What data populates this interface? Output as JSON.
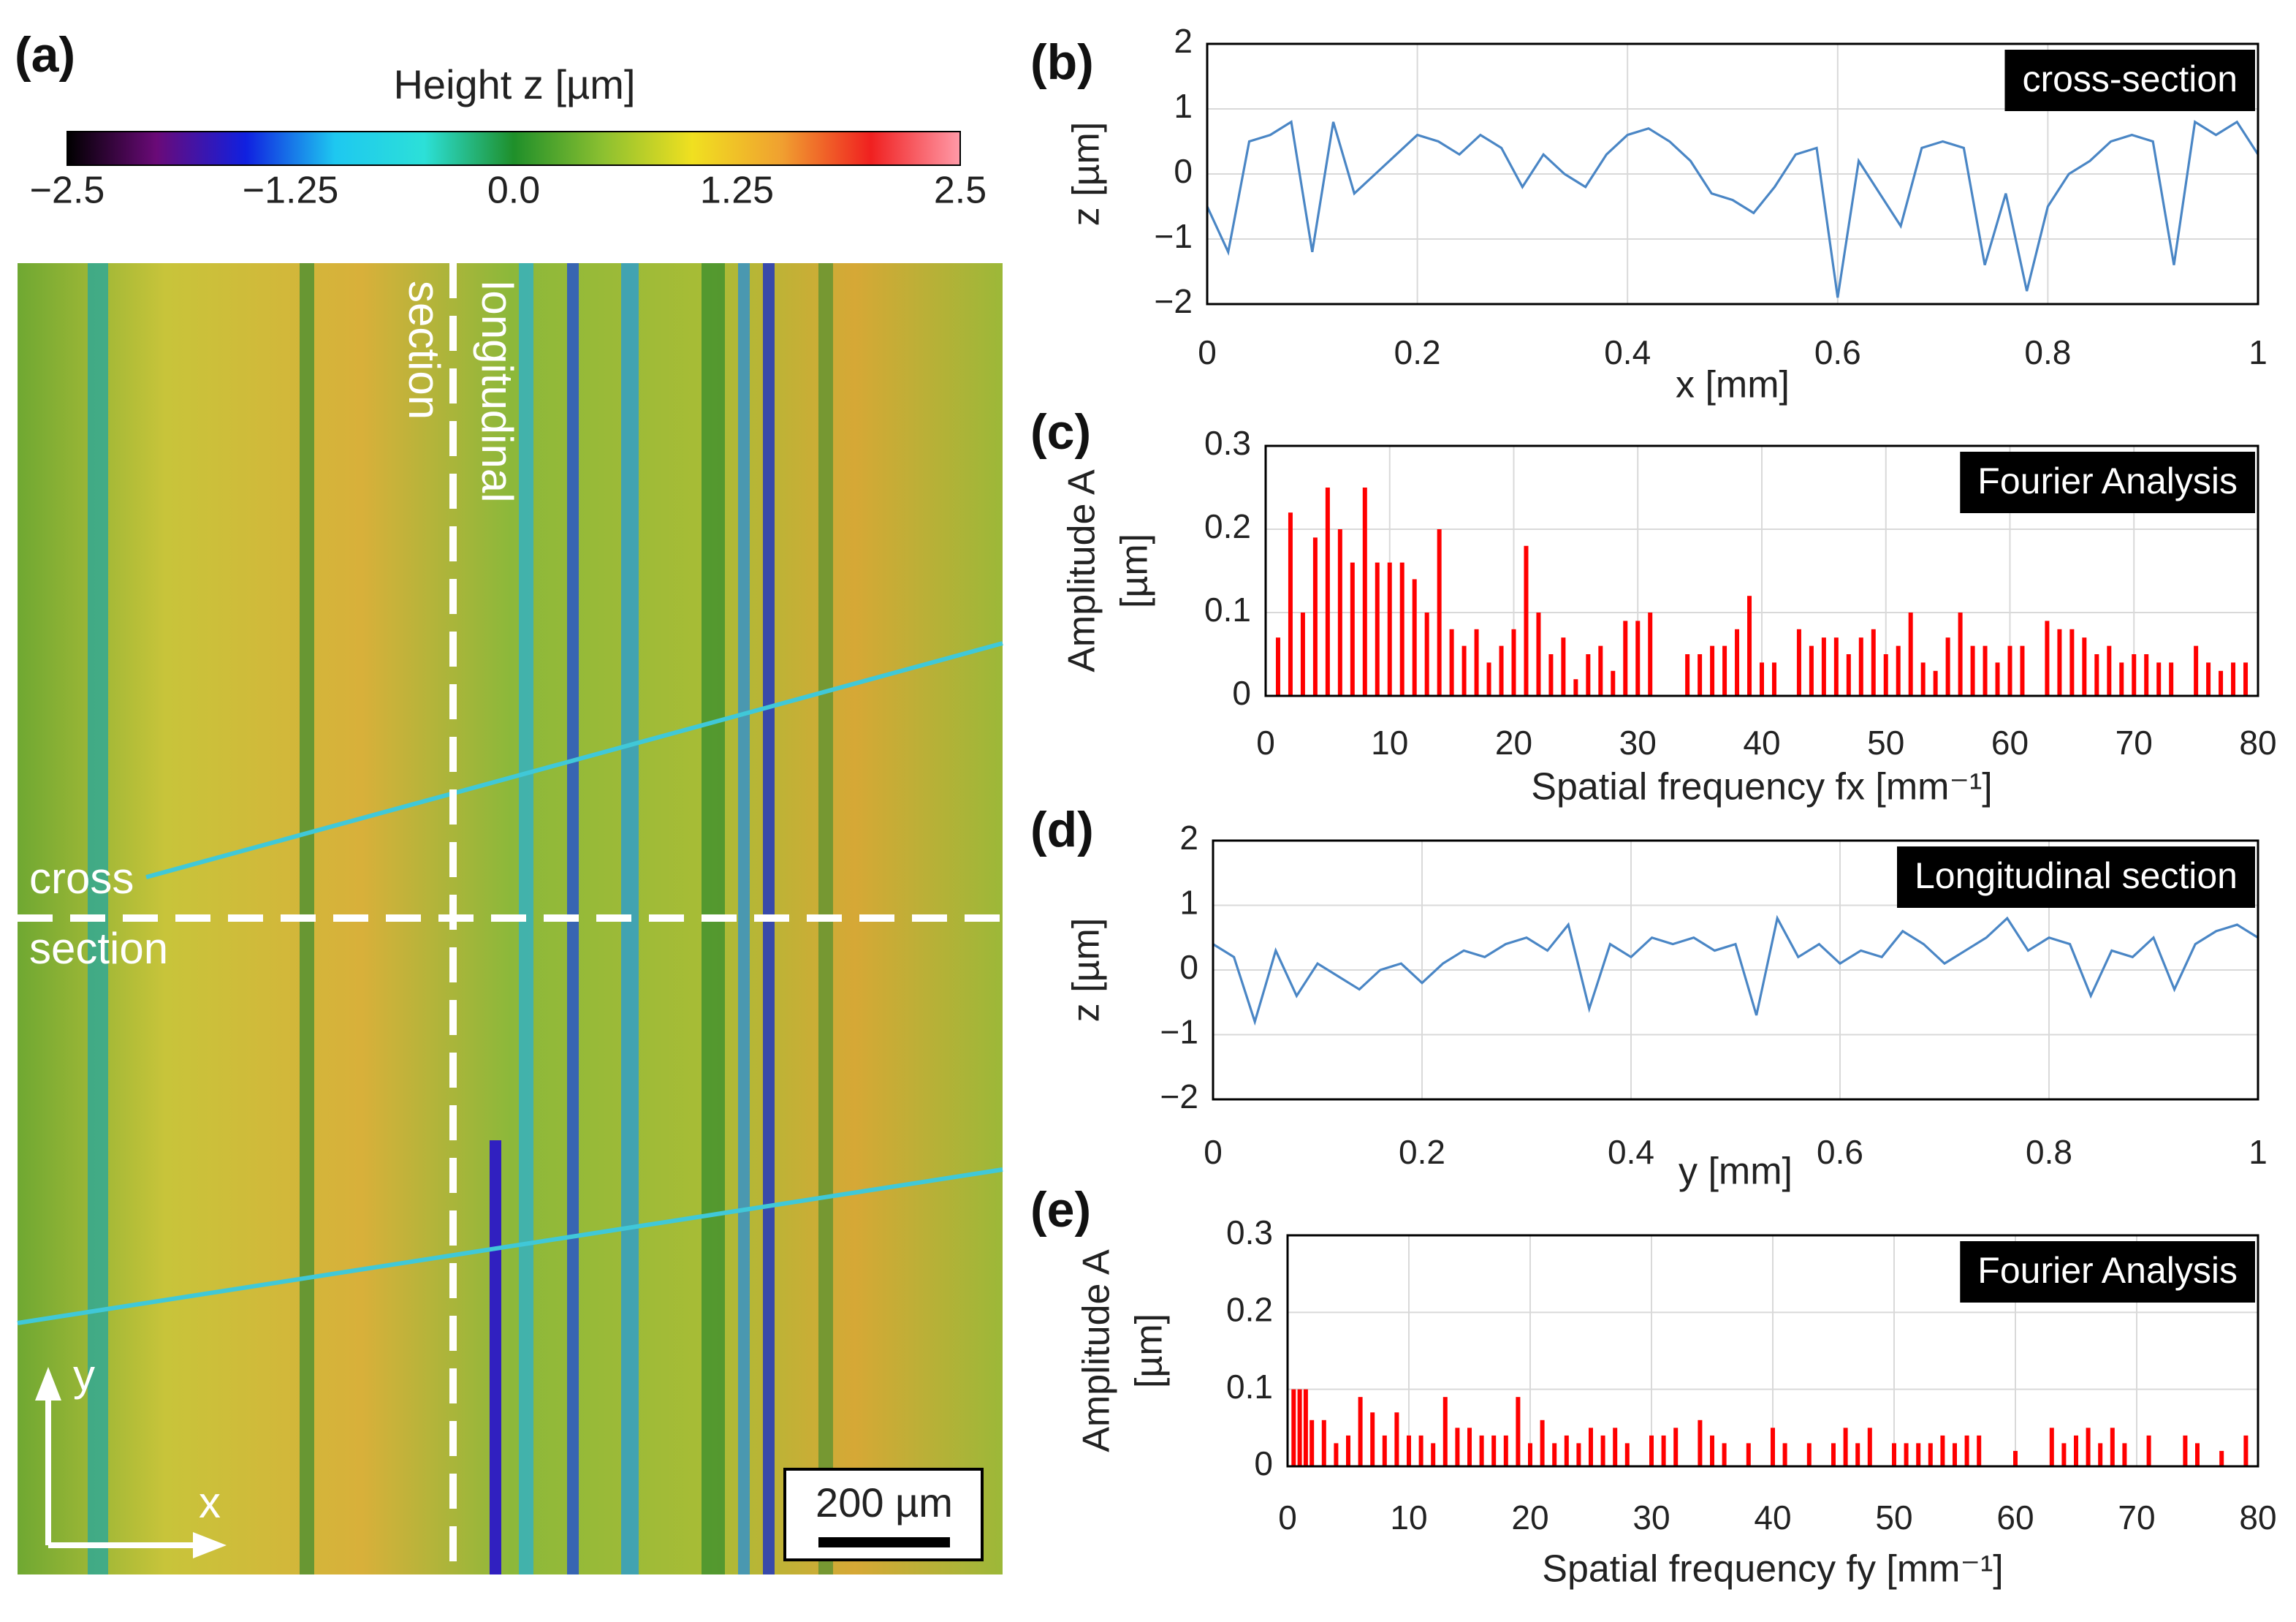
{
  "chart_data": [
    {
      "type": "image",
      "panel": "(a)",
      "title": "Height z [µm]",
      "colormap": [
        "#000000",
        "#6a0a78",
        "#1020e0",
        "#1ec8f0",
        "#2ce0d8",
        "#1f8f2a",
        "#8cc030",
        "#f0e020",
        "#f0a030",
        "#f02020",
        "#ff9aa8"
      ],
      "clim": [
        -2.5,
        2.5
      ],
      "cticks": [
        {
          "value": -2.5,
          "label": "−2.5"
        },
        {
          "value": -1.25,
          "label": "−1.25"
        },
        {
          "value": 0,
          "label": "0.0"
        },
        1.25,
        2.5
      ],
      "label_longitudinal": [
        "longitudinal",
        "section"
      ],
      "label_cross": [
        "cross",
        "section"
      ],
      "scale_bar": "200 µm",
      "axis_x": "x",
      "axis_y": "y"
    },
    {
      "type": "line",
      "panel": "(b)",
      "annotation": "cross-section",
      "xlabel": "x [mm]",
      "ylabel": "z [µm]",
      "color": "#4a86c5",
      "xlim": [
        0,
        1
      ],
      "ylim": [
        -2,
        2
      ],
      "xticks": [
        0,
        0.2,
        0.4,
        0.6,
        0.8,
        1
      ],
      "yticks": [
        {
          "value": -2,
          "label": "−2"
        },
        {
          "value": -1,
          "label": "−1"
        },
        0,
        1,
        2
      ],
      "grid": true,
      "x": [
        0,
        0.02,
        0.04,
        0.06,
        0.08,
        0.1,
        0.12,
        0.14,
        0.16,
        0.18,
        0.2,
        0.22,
        0.24,
        0.26,
        0.28,
        0.3,
        0.32,
        0.34,
        0.36,
        0.38,
        0.4,
        0.42,
        0.44,
        0.46,
        0.48,
        0.5,
        0.52,
        0.54,
        0.56,
        0.58,
        0.6,
        0.62,
        0.64,
        0.66,
        0.68,
        0.7,
        0.72,
        0.74,
        0.76,
        0.78,
        0.8,
        0.82,
        0.84,
        0.86,
        0.88,
        0.9,
        0.92,
        0.94,
        0.96,
        0.98,
        1
      ],
      "values": [
        -0.5,
        -1.2,
        0.5,
        0.6,
        0.8,
        -1.2,
        0.8,
        -0.3,
        0,
        0.3,
        0.6,
        0.5,
        0.3,
        0.6,
        0.4,
        -0.2,
        0.3,
        0,
        -0.2,
        0.3,
        0.6,
        0.7,
        0.5,
        0.2,
        -0.3,
        -0.4,
        -0.6,
        -0.2,
        0.3,
        0.4,
        -1.9,
        0.2,
        -0.3,
        -0.8,
        0.4,
        0.5,
        0.4,
        -1.4,
        -0.3,
        -1.8,
        -0.5,
        0,
        0.2,
        0.5,
        0.6,
        0.5,
        -1.4,
        0.8,
        0.6,
        0.8,
        0.3
      ]
    },
    {
      "type": "bar",
      "panel": "(c)",
      "annotation": "Fourier Analysis",
      "xlabel": "Spatial frequency fx [mm⁻¹]",
      "ylabel": [
        "Amplitude A",
        "[µm]"
      ],
      "color": "#ff0000",
      "xlim": [
        0,
        80
      ],
      "ylim": [
        0,
        0.3
      ],
      "xticks": [
        0,
        10,
        20,
        30,
        40,
        50,
        60,
        70,
        80
      ],
      "yticks": [
        0,
        0.1,
        0.2,
        0.3
      ],
      "grid": true,
      "x": [
        1,
        2,
        3,
        4,
        5,
        6,
        7,
        8,
        9,
        10,
        11,
        12,
        13,
        14,
        15,
        16,
        17,
        18,
        19,
        20,
        21,
        22,
        23,
        24,
        25,
        26,
        27,
        28,
        29,
        30,
        31,
        34,
        35,
        36,
        37,
        38,
        39,
        40,
        41,
        43,
        44,
        45,
        46,
        47,
        48,
        49,
        50,
        51,
        52,
        53,
        54,
        55,
        56,
        57,
        58,
        59,
        60,
        61,
        63,
        64,
        65,
        66,
        67,
        68,
        69,
        70,
        71,
        72,
        73,
        75,
        76,
        77,
        78,
        79
      ],
      "values": [
        0.07,
        0.22,
        0.1,
        0.19,
        0.25,
        0.2,
        0.16,
        0.25,
        0.16,
        0.16,
        0.16,
        0.14,
        0.1,
        0.2,
        0.08,
        0.06,
        0.08,
        0.04,
        0.06,
        0.08,
        0.18,
        0.1,
        0.05,
        0.07,
        0.02,
        0.05,
        0.06,
        0.03,
        0.09,
        0.09,
        0.1,
        0.05,
        0.05,
        0.06,
        0.06,
        0.08,
        0.12,
        0.04,
        0.04,
        0.08,
        0.06,
        0.07,
        0.07,
        0.05,
        0.07,
        0.08,
        0.05,
        0.06,
        0.1,
        0.04,
        0.03,
        0.07,
        0.1,
        0.06,
        0.06,
        0.04,
        0.06,
        0.06,
        0.09,
        0.08,
        0.08,
        0.07,
        0.05,
        0.06,
        0.04,
        0.05,
        0.05,
        0.04,
        0.04,
        0.06,
        0.04,
        0.03,
        0.04,
        0.04
      ]
    },
    {
      "type": "line",
      "panel": "(d)",
      "annotation": "Longitudinal section",
      "xlabel": "y [mm]",
      "ylabel": "z [µm]",
      "color": "#4a86c5",
      "xlim": [
        0,
        1
      ],
      "ylim": [
        -2,
        2
      ],
      "xticks": [
        0,
        0.2,
        0.4,
        0.6,
        0.8,
        1
      ],
      "yticks": [
        {
          "value": -2,
          "label": "−2"
        },
        {
          "value": -1,
          "label": "−1"
        },
        0,
        1,
        2
      ],
      "grid": true,
      "x": [
        0,
        0.02,
        0.04,
        0.06,
        0.08,
        0.1,
        0.12,
        0.14,
        0.16,
        0.18,
        0.2,
        0.22,
        0.24,
        0.26,
        0.28,
        0.3,
        0.32,
        0.34,
        0.36,
        0.38,
        0.4,
        0.42,
        0.44,
        0.46,
        0.48,
        0.5,
        0.52,
        0.54,
        0.56,
        0.58,
        0.6,
        0.62,
        0.64,
        0.66,
        0.68,
        0.7,
        0.72,
        0.74,
        0.76,
        0.78,
        0.8,
        0.82,
        0.84,
        0.86,
        0.88,
        0.9,
        0.92,
        0.94,
        0.96,
        0.98,
        1
      ],
      "values": [
        0.4,
        0.2,
        -0.8,
        0.3,
        -0.4,
        0.1,
        -0.1,
        -0.3,
        0,
        0.1,
        -0.2,
        0.1,
        0.3,
        0.2,
        0.4,
        0.5,
        0.3,
        0.7,
        -0.6,
        0.4,
        0.2,
        0.5,
        0.4,
        0.5,
        0.3,
        0.4,
        -0.7,
        0.8,
        0.2,
        0.4,
        0.1,
        0.3,
        0.2,
        0.6,
        0.4,
        0.1,
        0.3,
        0.5,
        0.8,
        0.3,
        0.5,
        0.4,
        -0.4,
        0.3,
        0.2,
        0.5,
        -0.3,
        0.4,
        0.6,
        0.7,
        0.5
      ]
    },
    {
      "type": "bar",
      "panel": "(e)",
      "annotation": "Fourier Analysis",
      "xlabel": "Spatial frequency fy [mm⁻¹]",
      "ylabel": [
        "Amplitude A",
        "[µm]"
      ],
      "color": "#ff0000",
      "xlim": [
        0,
        80
      ],
      "ylim": [
        0,
        0.3
      ],
      "xticks": [
        0,
        10,
        20,
        30,
        40,
        50,
        60,
        70,
        80
      ],
      "yticks": [
        0,
        0.1,
        0.2,
        0.3
      ],
      "grid": true,
      "x": [
        0.5,
        1,
        1.5,
        2,
        3,
        4,
        5,
        6,
        7,
        8,
        9,
        10,
        11,
        12,
        13,
        14,
        15,
        16,
        17,
        18,
        19,
        20,
        21,
        22,
        23,
        24,
        25,
        26,
        27,
        28,
        30,
        31,
        32,
        34,
        35,
        36,
        38,
        40,
        41,
        43,
        45,
        46,
        47,
        48,
        50,
        51,
        52,
        53,
        54,
        55,
        56,
        57,
        60,
        63,
        64,
        65,
        66,
        67,
        68,
        69,
        71,
        74,
        75,
        77,
        79
      ],
      "values": [
        0.1,
        0.1,
        0.1,
        0.06,
        0.06,
        0.03,
        0.04,
        0.09,
        0.07,
        0.04,
        0.07,
        0.04,
        0.04,
        0.03,
        0.09,
        0.05,
        0.05,
        0.04,
        0.04,
        0.04,
        0.09,
        0.03,
        0.06,
        0.03,
        0.04,
        0.03,
        0.05,
        0.04,
        0.05,
        0.03,
        0.04,
        0.04,
        0.05,
        0.06,
        0.04,
        0.03,
        0.03,
        0.05,
        0.03,
        0.03,
        0.03,
        0.05,
        0.03,
        0.05,
        0.03,
        0.03,
        0.03,
        0.03,
        0.04,
        0.03,
        0.04,
        0.04,
        0.02,
        0.05,
        0.03,
        0.04,
        0.05,
        0.03,
        0.05,
        0.03,
        0.04,
        0.04,
        0.03,
        0.02,
        0.04
      ]
    }
  ]
}
